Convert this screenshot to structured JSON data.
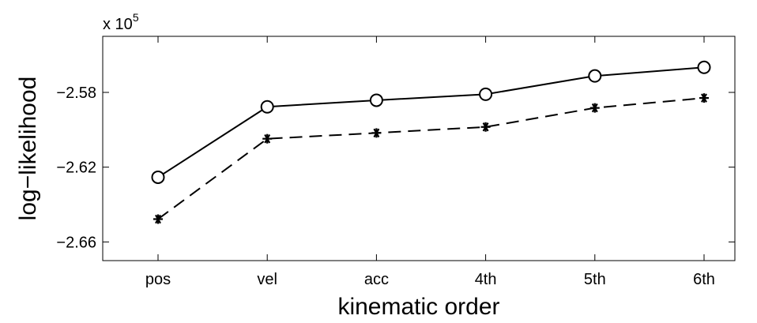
{
  "chart_data": {
    "type": "line",
    "categories": [
      "pos",
      "vel",
      "acc",
      "4th",
      "5th",
      "6th"
    ],
    "series": [
      {
        "values": [
          -2.6254,
          -2.5877,
          -2.5842,
          -2.581,
          -2.5712,
          -2.5666
        ],
        "line_style": "solid",
        "marker": "circle",
        "color": "#000000"
      },
      {
        "values": [
          -2.6478,
          -2.6048,
          -2.6017,
          -2.5985,
          -2.5883,
          -2.583
        ],
        "line_style": "dashed",
        "marker": "asterisk",
        "color": "#000000"
      }
    ],
    "xlabel": "kinematic order",
    "ylabel": "log−likelihood",
    "ylim": [
      -2.67,
      -2.55
    ],
    "yticks": [
      -2.66,
      -2.62,
      -2.58
    ],
    "ytick_labels": [
      "−2.66",
      "−2.62",
      "−2.58"
    ],
    "scale_label": {
      "base": "x 10",
      "exponent": "5"
    },
    "grid": false
  }
}
